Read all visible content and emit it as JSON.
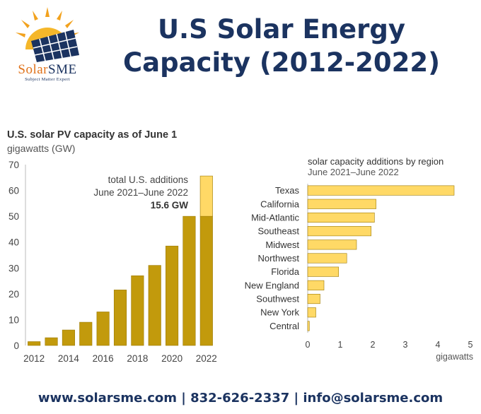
{
  "header": {
    "logo": {
      "name_part1": "Solar",
      "name_part2": "SME",
      "tagline": "Subject Matter Expert"
    },
    "title_line1": "U.S Solar Energy",
    "title_line2": "Capacity (2012-2022)"
  },
  "colors": {
    "navy": "#1b3360",
    "orange": "#e0731b",
    "bar_dark": "#c29a0c",
    "bar_light": "#ffd966",
    "bar_border": "#9c7a06"
  },
  "chart_data": [
    {
      "type": "bar",
      "title": "U.S. solar PV capacity as of June 1",
      "subtitle": "gigawatts (GW)",
      "x": [
        2012,
        2013,
        2014,
        2015,
        2016,
        2017,
        2018,
        2019,
        2020,
        2021,
        2022
      ],
      "x_tick_labels": [
        "2012",
        "2014",
        "2016",
        "2018",
        "2020",
        "2022"
      ],
      "values": [
        1.5,
        3.0,
        6.0,
        9.0,
        13.0,
        21.5,
        27.0,
        31.0,
        38.5,
        50.0,
        50.0
      ],
      "addition_2022": 15.6,
      "ylim": [
        0,
        70
      ],
      "y_ticks": [
        0,
        10,
        20,
        30,
        40,
        50,
        60,
        70
      ],
      "annotation": {
        "line1": "total U.S. additions",
        "line2": "June 2021–June 2022",
        "line3": "15.6 GW"
      },
      "grid": false
    },
    {
      "type": "bar",
      "orientation": "horizontal",
      "title": "solar capacity additions by region",
      "subtitle": "June 2021–June 2022",
      "categories": [
        "Texas",
        "California",
        "Mid-Atlantic",
        "Southeast",
        "Midwest",
        "Northwest",
        "Florida",
        "New England",
        "Southwest",
        "New York",
        "Central"
      ],
      "values": [
        4.5,
        2.1,
        2.05,
        1.95,
        1.5,
        1.2,
        0.95,
        0.5,
        0.38,
        0.25,
        0.05
      ],
      "xlim": [
        0,
        5
      ],
      "x_ticks": [
        0,
        1,
        2,
        3,
        4,
        5
      ],
      "xlabel": "gigawatts",
      "grid": false
    }
  ],
  "footer": {
    "text": "www.solarsme.com | 832-626-2337 | info@solarsme.com"
  }
}
